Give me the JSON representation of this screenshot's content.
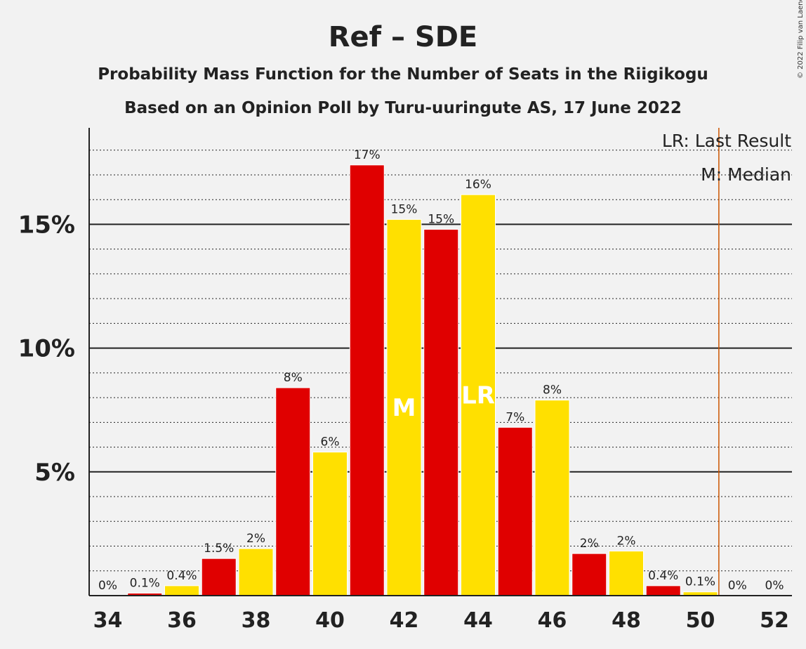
{
  "chart_data": {
    "type": "bar",
    "title": "Ref – SDE",
    "subtitle": "Probability Mass Function for the Number of Seats in the Riigikogu",
    "subtitle2": "Based on an Opinion Poll by Turu-uuringute AS, 17 June 2022",
    "copyright": "© 2022 Filip van Laenen",
    "legend": [
      "LR: Last Result",
      "M: Median"
    ],
    "legend_position": "top-right",
    "x_ticks": [
      "34",
      "36",
      "38",
      "40",
      "42",
      "44",
      "46",
      "48",
      "50",
      "52"
    ],
    "y_ticks": [
      {
        "value": 5,
        "label": "5%"
      },
      {
        "value": 10,
        "label": "10%"
      },
      {
        "value": 15,
        "label": "15%"
      }
    ],
    "ylim": [
      0,
      18.9
    ],
    "grid": true,
    "categories": [
      34,
      35,
      36,
      37,
      38,
      39,
      40,
      41,
      42,
      43,
      44,
      45,
      46,
      47,
      48,
      49,
      50,
      51,
      52
    ],
    "values": [
      0,
      0.1,
      0.4,
      1.5,
      1.9,
      8.4,
      5.8,
      17.4,
      15.2,
      14.8,
      16.2,
      6.8,
      7.9,
      1.7,
      1.8,
      0.4,
      0.15,
      0,
      0
    ],
    "labels": [
      "0%",
      "0.1%",
      "0.4%",
      "1.5%",
      "2%",
      "8%",
      "6%",
      "17%",
      "15%",
      "15%",
      "16%",
      "7%",
      "8%",
      "2%",
      "2%",
      "0.4%",
      "0.1%",
      "0%",
      "0%"
    ],
    "colors": [
      "#e00000",
      "#ffe000"
    ],
    "median": {
      "seat": 42,
      "marker": "M"
    },
    "last_result": {
      "seat": 44,
      "marker": "LR"
    },
    "majority_line": {
      "x": 50.5,
      "color": "#cc5500"
    }
  }
}
